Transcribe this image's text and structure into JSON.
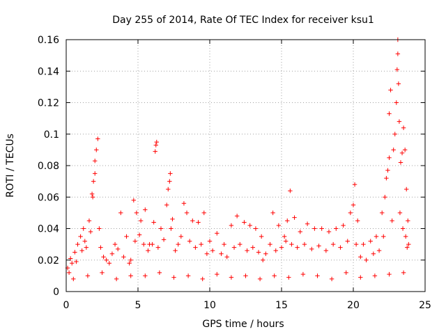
{
  "chart_data": {
    "type": "scatter",
    "title": "Day 255 of 2014, Rate Of TEC Index for receiver ksu1",
    "xlabel": "GPS time / hours",
    "ylabel": "ROTI / TECUs",
    "xlim": [
      0,
      25
    ],
    "ylim": [
      0,
      0.16
    ],
    "xticks": [
      0,
      5,
      10,
      15,
      20,
      25
    ],
    "yticks": [
      0,
      0.02,
      0.04,
      0.06,
      0.08,
      0.1,
      0.12,
      0.14,
      0.16
    ],
    "xtick_labels": [
      "0",
      "5",
      "10",
      "15",
      "20",
      "25"
    ],
    "ytick_labels": [
      "0",
      "0.02",
      "0.04",
      "0.06",
      "0.08",
      "0.1",
      "0.12",
      "0.14",
      "0.16"
    ],
    "grid": true,
    "marker": "+",
    "color": "#ff0000",
    "series": [
      {
        "name": "ROTI",
        "points": [
          [
            0.2,
            0.012
          ],
          [
            0.4,
            0.018
          ],
          [
            0.6,
            0.025
          ],
          [
            0.8,
            0.03
          ],
          [
            1.0,
            0.035
          ],
          [
            1.2,
            0.04
          ],
          [
            1.4,
            0.028
          ],
          [
            1.6,
            0.045
          ],
          [
            1.8,
            0.062
          ],
          [
            1.9,
            0.07
          ],
          [
            2.0,
            0.083
          ],
          [
            2.1,
            0.09
          ],
          [
            2.2,
            0.097
          ],
          [
            2.0,
            0.075
          ],
          [
            1.85,
            0.06
          ],
          [
            2.3,
            0.04
          ],
          [
            2.6,
            0.022
          ],
          [
            3.0,
            0.018
          ],
          [
            3.4,
            0.03
          ],
          [
            3.8,
            0.05
          ],
          [
            4.2,
            0.035
          ],
          [
            4.5,
            0.02
          ],
          [
            4.7,
            0.058
          ],
          [
            4.9,
            0.05
          ],
          [
            5.2,
            0.045
          ],
          [
            5.5,
            0.052
          ],
          [
            5.8,
            0.03
          ],
          [
            6.1,
            0.044
          ],
          [
            6.2,
            0.089
          ],
          [
            6.25,
            0.093
          ],
          [
            6.3,
            0.095
          ],
          [
            6.6,
            0.04
          ],
          [
            7.0,
            0.055
          ],
          [
            7.1,
            0.065
          ],
          [
            7.2,
            0.07
          ],
          [
            7.25,
            0.075
          ],
          [
            7.4,
            0.046
          ],
          [
            7.8,
            0.03
          ],
          [
            8.2,
            0.056
          ],
          [
            8.4,
            0.05
          ],
          [
            8.8,
            0.045
          ],
          [
            9.2,
            0.044
          ],
          [
            9.6,
            0.05
          ],
          [
            10.0,
            0.032
          ],
          [
            10.5,
            0.037
          ],
          [
            11.0,
            0.03
          ],
          [
            11.5,
            0.042
          ],
          [
            11.9,
            0.048
          ],
          [
            12.4,
            0.044
          ],
          [
            12.8,
            0.042
          ],
          [
            13.2,
            0.04
          ],
          [
            13.6,
            0.035
          ],
          [
            13.9,
            0.024
          ],
          [
            14.4,
            0.05
          ],
          [
            14.8,
            0.042
          ],
          [
            15.2,
            0.035
          ],
          [
            15.4,
            0.045
          ],
          [
            15.6,
            0.064
          ],
          [
            15.9,
            0.047
          ],
          [
            16.3,
            0.038
          ],
          [
            16.8,
            0.043
          ],
          [
            17.3,
            0.04
          ],
          [
            17.8,
            0.04
          ],
          [
            18.3,
            0.038
          ],
          [
            18.8,
            0.04
          ],
          [
            19.3,
            0.042
          ],
          [
            19.8,
            0.05
          ],
          [
            20.0,
            0.055
          ],
          [
            20.1,
            0.068
          ],
          [
            20.3,
            0.045
          ],
          [
            20.7,
            0.03
          ],
          [
            21.2,
            0.032
          ],
          [
            21.6,
            0.035
          ],
          [
            22.0,
            0.05
          ],
          [
            22.2,
            0.06
          ],
          [
            22.3,
            0.072
          ],
          [
            22.4,
            0.077
          ],
          [
            22.5,
            0.085
          ],
          [
            22.5,
            0.113
          ],
          [
            22.6,
            0.128
          ],
          [
            22.8,
            0.09
          ],
          [
            22.9,
            0.1
          ],
          [
            23.0,
            0.12
          ],
          [
            23.05,
            0.141
          ],
          [
            23.1,
            0.151
          ],
          [
            23.1,
            0.16
          ],
          [
            23.15,
            0.132
          ],
          [
            23.2,
            0.108
          ],
          [
            23.3,
            0.082
          ],
          [
            23.4,
            0.088
          ],
          [
            23.5,
            0.104
          ],
          [
            23.6,
            0.09
          ],
          [
            23.7,
            0.065
          ],
          [
            23.8,
            0.045
          ],
          [
            23.85,
            0.03
          ],
          [
            0.5,
            0.008
          ],
          [
            1.5,
            0.01
          ],
          [
            2.5,
            0.012
          ],
          [
            3.5,
            0.008
          ],
          [
            4.5,
            0.01
          ],
          [
            5.5,
            0.01
          ],
          [
            6.5,
            0.012
          ],
          [
            7.5,
            0.009
          ],
          [
            8.5,
            0.01
          ],
          [
            9.5,
            0.008
          ],
          [
            10.5,
            0.011
          ],
          [
            11.5,
            0.009
          ],
          [
            12.5,
            0.01
          ],
          [
            13.5,
            0.008
          ],
          [
            14.5,
            0.01
          ],
          [
            15.5,
            0.009
          ],
          [
            16.5,
            0.011
          ],
          [
            17.5,
            0.01
          ],
          [
            18.5,
            0.008
          ],
          [
            19.5,
            0.012
          ],
          [
            20.5,
            0.009
          ],
          [
            21.5,
            0.01
          ],
          [
            22.5,
            0.011
          ],
          [
            23.5,
            0.012
          ],
          [
            0.1,
            0.015
          ],
          [
            0.3,
            0.021
          ],
          [
            0.7,
            0.019
          ],
          [
            1.1,
            0.026
          ],
          [
            1.3,
            0.032
          ],
          [
            1.7,
            0.038
          ],
          [
            2.4,
            0.028
          ],
          [
            2.8,
            0.02
          ],
          [
            3.2,
            0.024
          ],
          [
            3.6,
            0.027
          ],
          [
            4.0,
            0.022
          ],
          [
            4.4,
            0.018
          ],
          [
            4.8,
            0.032
          ],
          [
            5.1,
            0.036
          ],
          [
            5.4,
            0.03
          ],
          [
            5.7,
            0.026
          ],
          [
            6.0,
            0.03
          ],
          [
            6.4,
            0.028
          ],
          [
            6.8,
            0.033
          ],
          [
            7.3,
            0.04
          ],
          [
            7.6,
            0.026
          ],
          [
            8.0,
            0.035
          ],
          [
            8.6,
            0.032
          ],
          [
            9.0,
            0.028
          ],
          [
            9.4,
            0.03
          ],
          [
            9.8,
            0.024
          ],
          [
            10.2,
            0.026
          ],
          [
            10.8,
            0.024
          ],
          [
            11.2,
            0.022
          ],
          [
            11.7,
            0.028
          ],
          [
            12.1,
            0.03
          ],
          [
            12.6,
            0.026
          ],
          [
            13.0,
            0.028
          ],
          [
            13.4,
            0.025
          ],
          [
            13.7,
            0.02
          ],
          [
            14.2,
            0.03
          ],
          [
            14.6,
            0.026
          ],
          [
            15.0,
            0.028
          ],
          [
            15.3,
            0.032
          ],
          [
            15.7,
            0.03
          ],
          [
            16.1,
            0.028
          ],
          [
            16.6,
            0.03
          ],
          [
            17.1,
            0.027
          ],
          [
            17.6,
            0.029
          ],
          [
            18.1,
            0.026
          ],
          [
            18.6,
            0.03
          ],
          [
            19.1,
            0.028
          ],
          [
            19.6,
            0.032
          ],
          [
            20.2,
            0.03
          ],
          [
            20.5,
            0.022
          ],
          [
            20.9,
            0.02
          ],
          [
            21.4,
            0.024
          ],
          [
            21.8,
            0.026
          ],
          [
            22.1,
            0.035
          ],
          [
            22.7,
            0.045
          ],
          [
            23.25,
            0.05
          ],
          [
            23.45,
            0.04
          ],
          [
            23.65,
            0.035
          ],
          [
            23.75,
            0.028
          ]
        ]
      }
    ]
  }
}
